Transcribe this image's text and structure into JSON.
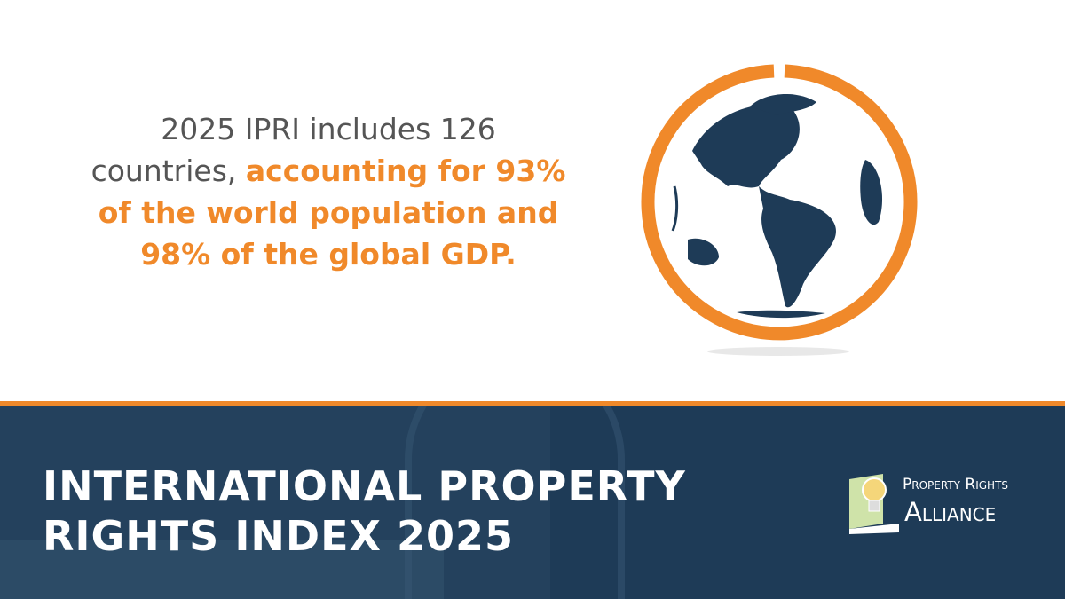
{
  "statement": {
    "plain": "2025 IPRI includes 126 countries,",
    "highlight": "accounting for 93% of the world population and 98% of the global GDP."
  },
  "banner": {
    "title_lines": [
      "INTERNATIONAL PROPERTY",
      "RIGHTS INDEX 2025"
    ]
  },
  "logo": {
    "line1": "Property Rights",
    "line2": "Alliance"
  }
}
